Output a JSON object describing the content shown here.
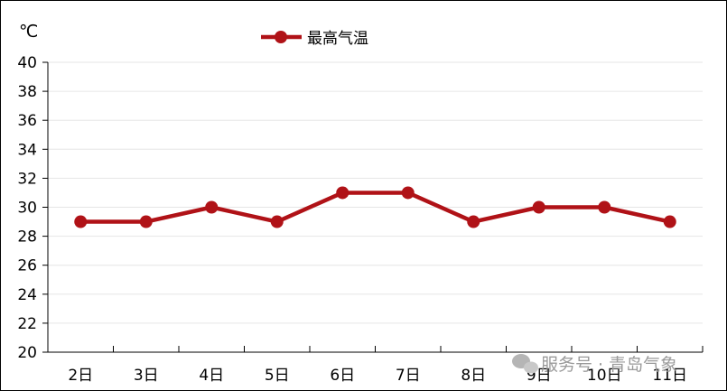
{
  "chart_data": {
    "type": "line",
    "ylabel": "℃",
    "categories": [
      "2日",
      "3日",
      "4日",
      "5日",
      "6日",
      "7日",
      "8日",
      "9日",
      "10日",
      "11日"
    ],
    "series": [
      {
        "name": "最高气温",
        "values": [
          29,
          29,
          30,
          29,
          31,
          31,
          29,
          30,
          30,
          29
        ],
        "color": "#b01217"
      }
    ],
    "ylim": [
      20,
      40
    ],
    "yticks": [
      20,
      22,
      24,
      26,
      28,
      30,
      32,
      34,
      36,
      38,
      40
    ],
    "grid": true,
    "legend": "top-center"
  },
  "watermark": {
    "text": "服务号 · 青岛气象",
    "icon": "wechat-icon"
  }
}
